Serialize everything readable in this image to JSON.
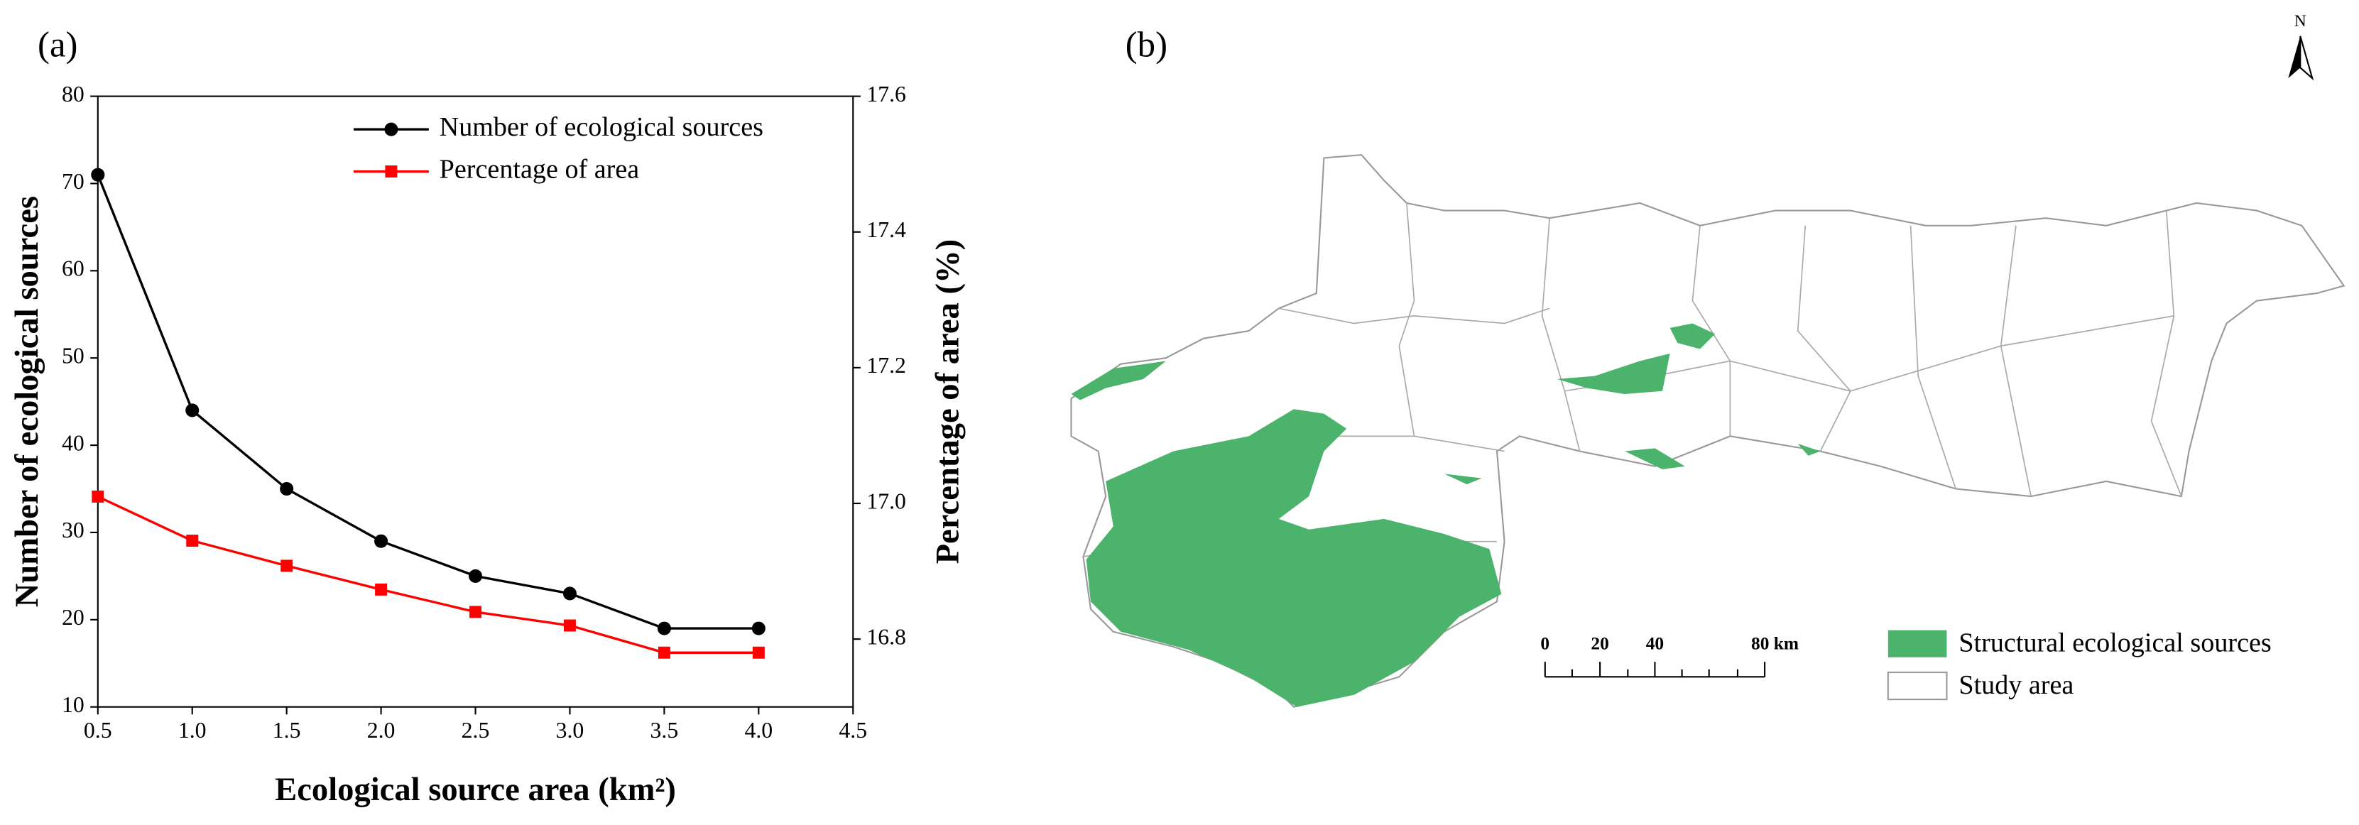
{
  "chart_data": {
    "type": "line",
    "panel_label": "(a)",
    "x_label": "Ecological source area (km²)",
    "y_label": "Number of ecological sources",
    "y2_label": "Percentage of area (%)",
    "x": [
      0.5,
      1.0,
      1.5,
      2.0,
      2.5,
      3.0,
      3.5,
      4.0
    ],
    "series": [
      {
        "name": "Number of ecological sources",
        "color": "#000000",
        "marker": "circle",
        "values": [
          71,
          44,
          35,
          29,
          25,
          23,
          19,
          19
        ]
      },
      {
        "name": "Percentage of area",
        "color": "#ff0000",
        "marker": "square",
        "axis": "y2",
        "values": [
          17.01,
          16.945,
          16.908,
          16.873,
          16.84,
          16.82,
          16.78,
          16.78
        ]
      }
    ],
    "xlim": [
      0.5,
      4.5
    ],
    "xticks": [
      0.5,
      {
        "value": 1.0,
        "label": "1.0"
      },
      1.5,
      {
        "value": 2.0,
        "label": "2.0"
      },
      2.5,
      {
        "value": 3.0,
        "label": "3.0"
      },
      3.5,
      {
        "value": 4.0,
        "label": "4.0"
      },
      4.5
    ],
    "ylim": [
      10,
      80
    ],
    "yticks": [
      10,
      20,
      30,
      40,
      50,
      60,
      70,
      80
    ],
    "y2lim": [
      16.7,
      17.6
    ],
    "y2ticks": [
      16.8,
      {
        "value": 17.0,
        "label": "17.0"
      },
      17.2,
      17.4,
      17.6
    ],
    "legend": "upper right",
    "grid": false
  },
  "map": {
    "panel_label": "(b)",
    "north": "N",
    "scale_labels": [
      "0",
      "20",
      "40",
      "80 km"
    ],
    "legend": [
      "Structural ecological sources",
      "Study area"
    ]
  }
}
